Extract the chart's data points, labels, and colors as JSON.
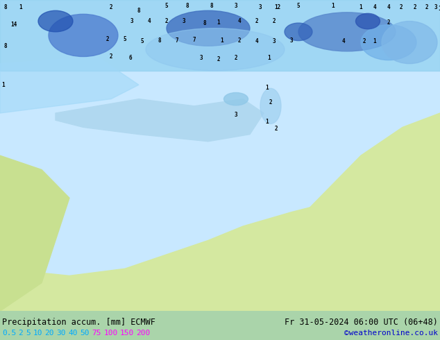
{
  "title_left": "Precipitation accum. [mm] ECMWF",
  "title_right": "Fr 31-05-2024 06:00 UTC (06+48)",
  "credit": "©weatheronline.co.uk",
  "legend_values": [
    "0.5",
    "2",
    "5",
    "10",
    "20",
    "30",
    "40",
    "50",
    "75",
    "100",
    "150",
    "200"
  ],
  "legend_colors": [
    "#c8f0c8",
    "#a0e0a0",
    "#78d278",
    "#50c850",
    "#28be28",
    "#00b400",
    "#00c8c8",
    "#00a0f0",
    "#0064dc",
    "#0032c8",
    "#6400c8",
    "#c800c8"
  ],
  "legend_text_colors": [
    "#00aaff",
    "#00aaff",
    "#00aaff",
    "#00aaff",
    "#00aaff",
    "#00aaff",
    "#00aaff",
    "#00aaff",
    "#ff00ff",
    "#ff00ff",
    "#ff00ff",
    "#ff00ff"
  ],
  "bg_color": "#aad4aa",
  "map_bg": "#e8f8e8",
  "title_color": "#000000",
  "credit_color": "#0000cc",
  "bottom_bar_color": "#e8ffe8",
  "fig_width": 6.34,
  "fig_height": 4.9
}
